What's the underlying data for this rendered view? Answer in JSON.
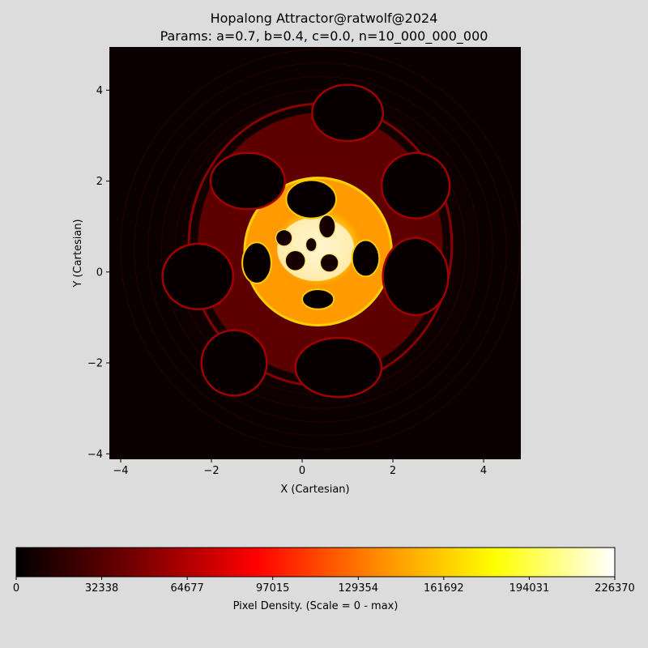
{
  "chart_data": [
    {
      "type": "heatmap",
      "title": "Hopalong Attractor@ratwolf@2024",
      "subtitle": "Params: a=0.7, b=0.4, c=0.0, n=10_000_000_000",
      "xlabel": "X (Cartesian)",
      "ylabel": "Y (Cartesian)",
      "xlim": [
        -4.25,
        4.82
      ],
      "ylim": [
        -4.12,
        4.95
      ],
      "xticks": [
        -4,
        -2,
        0,
        2,
        4
      ],
      "yticks": [
        -4,
        -2,
        0,
        2,
        4
      ],
      "xtick_labels": [
        "−4",
        "−2",
        "0",
        "2",
        "4"
      ],
      "ytick_labels": [
        "−4",
        "−2",
        "0",
        "2",
        "4"
      ],
      "colormap": "hot",
      "background_color": "#0a0000",
      "loops": [
        {
          "cx": 0.2,
          "cy": 1.6,
          "rx": 0.55,
          "ry": 0.42,
          "level": "high"
        },
        {
          "cx": 0.35,
          "cy": -0.6,
          "rx": 0.35,
          "ry": 0.22,
          "level": "high"
        },
        {
          "cx": -1.0,
          "cy": 0.2,
          "rx": 0.32,
          "ry": 0.45,
          "level": "high"
        },
        {
          "cx": 1.4,
          "cy": 0.3,
          "rx": 0.3,
          "ry": 0.4,
          "level": "high"
        },
        {
          "cx": 1.0,
          "cy": 3.5,
          "rx": 0.78,
          "ry": 0.62,
          "level": "low"
        },
        {
          "cx": -1.2,
          "cy": 2.0,
          "rx": 0.82,
          "ry": 0.62,
          "level": "low"
        },
        {
          "cx": 2.5,
          "cy": 1.9,
          "rx": 0.75,
          "ry": 0.72,
          "level": "low"
        },
        {
          "cx": -2.3,
          "cy": -0.1,
          "rx": 0.78,
          "ry": 0.72,
          "level": "low"
        },
        {
          "cx": 2.5,
          "cy": -0.1,
          "rx": 0.72,
          "ry": 0.85,
          "level": "low"
        },
        {
          "cx": -1.5,
          "cy": -2.0,
          "rx": 0.72,
          "ry": 0.72,
          "level": "low"
        },
        {
          "cx": 0.8,
          "cy": -2.1,
          "rx": 0.95,
          "ry": 0.65,
          "level": "low"
        }
      ],
      "colorbar": {
        "label": "Pixel Density. (Scale = 0 - max)",
        "min": 0,
        "max": 226370,
        "ticks": [
          0,
          32338,
          64677,
          97015,
          129354,
          161692,
          194031,
          226370
        ],
        "tick_labels": [
          "0",
          "32338",
          "64677",
          "97015",
          "129354",
          "161692",
          "194031",
          "226370"
        ],
        "stops": [
          "#000000",
          "#770000",
          "#ff0000",
          "#ff8800",
          "#ffff00",
          "#ffffff"
        ]
      }
    }
  ]
}
